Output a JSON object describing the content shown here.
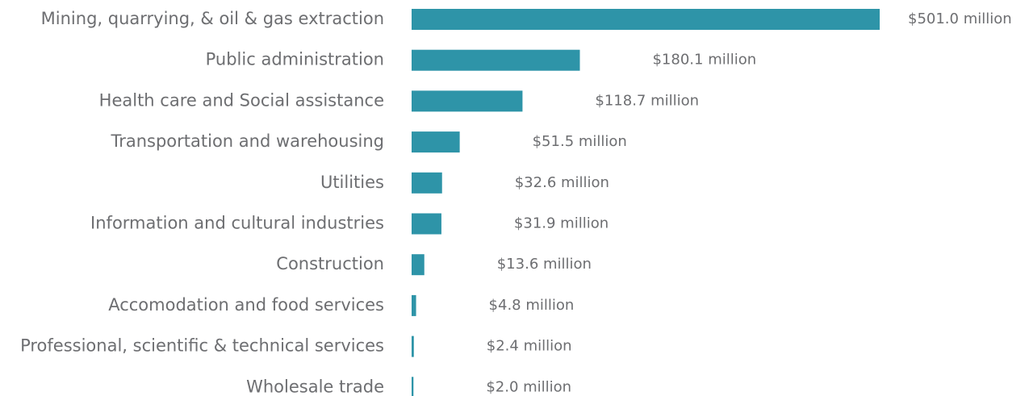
{
  "chart_data": {
    "type": "bar",
    "orientation": "horizontal",
    "color": "#2e94a8",
    "categories": [
      "Mining, quarrying, & oil & gas extraction",
      "Public administration",
      "Health care and Social assistance",
      "Transportation and warehousing",
      "Utilities",
      "Information and cultural industries",
      "Construction",
      "Accomodation and food services",
      "Professional, scientific & technical services",
      "Wholesale trade"
    ],
    "values": [
      501.0,
      180.1,
      118.7,
      51.5,
      32.6,
      31.9,
      13.6,
      4.8,
      2.4,
      2.0
    ],
    "value_labels": [
      "$501.0 million",
      "$180.1 million",
      "$118.7 million",
      "$51.5 million",
      "$32.6 million",
      "$31.9 million",
      "$13.6 million",
      "$4.8 million",
      "$2.4 million",
      "$2.0 million"
    ]
  }
}
